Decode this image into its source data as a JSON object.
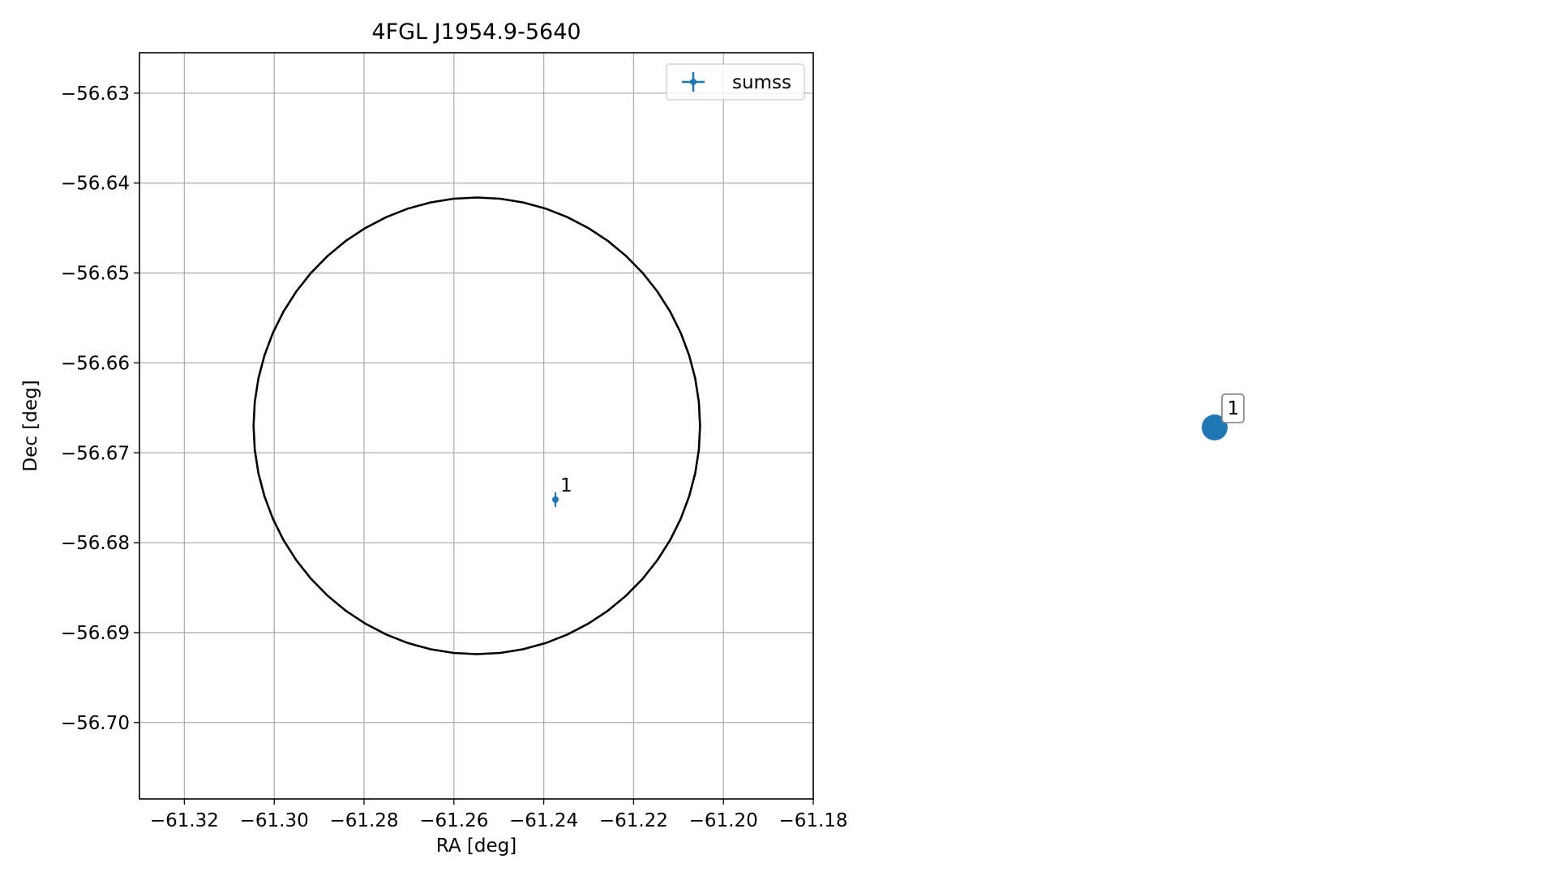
{
  "chart_data": [
    {
      "type": "scatter",
      "title": "4FGL J1954.9-5640",
      "xlabel": "RA [deg]",
      "ylabel": "Dec [deg]",
      "xlim": [
        -61.33,
        -61.18
      ],
      "ylim": [
        -56.7085,
        -56.6255
      ],
      "x_ticks": [
        -61.32,
        -61.3,
        -61.28,
        -61.26,
        -61.24,
        -61.22,
        -61.2,
        -61.18
      ],
      "x_tick_labels": [
        "−61.32",
        "−61.30",
        "−61.28",
        "−61.26",
        "−61.24",
        "−61.22",
        "−61.20",
        "−61.18"
      ],
      "y_ticks": [
        -56.63,
        -56.64,
        -56.65,
        -56.66,
        -56.67,
        -56.68,
        -56.69,
        -56.7
      ],
      "y_tick_labels": [
        "−56.63",
        "−56.64",
        "−56.65",
        "−56.66",
        "−56.67",
        "−56.68",
        "−56.69",
        "−56.70"
      ],
      "grid": true,
      "legend": {
        "position": "top-right",
        "entries": [
          "sumss"
        ]
      },
      "series": [
        {
          "name": "sumss",
          "color": "#1f77b4",
          "marker": "errorbar",
          "points": [
            {
              "x": -61.2374,
              "y": -56.6752,
              "xerr": 0.0003,
              "yerr": 0.0008,
              "label": "1"
            }
          ]
        }
      ],
      "ellipse": {
        "color": "#000000",
        "center": [
          -61.2549,
          -56.667
        ],
        "ra_radius": 0.0497,
        "dec_radius": 0.0254
      }
    },
    {
      "type": "scatter",
      "axes_visible": false,
      "points": [
        {
          "label": "1",
          "color": "#1f77b4"
        }
      ]
    }
  ]
}
